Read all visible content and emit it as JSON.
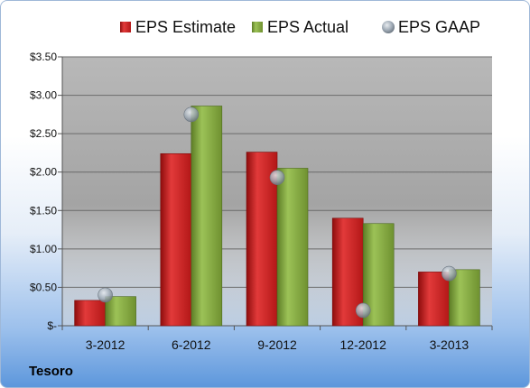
{
  "company": "Tesoro",
  "colors": {
    "estimate": "#cc1f1f",
    "actual": "#7ea83a",
    "gaap": "#9aa6b2",
    "plot_bg": "#a9a9a9",
    "grid": "#6b6b6b"
  },
  "chart_data": {
    "type": "bar",
    "categories": [
      "3-2012",
      "6-2012",
      "9-2012",
      "12-2012",
      "3-2013"
    ],
    "series": [
      {
        "name": "EPS Estimate",
        "values": [
          0.33,
          2.24,
          2.26,
          1.4,
          0.7
        ]
      },
      {
        "name": "EPS Actual",
        "values": [
          0.38,
          2.86,
          2.05,
          1.33,
          0.73
        ]
      },
      {
        "name": "EPS GAAP",
        "marker": "circle",
        "values": [
          0.4,
          2.75,
          1.93,
          0.2,
          0.68
        ]
      }
    ],
    "ylim": [
      0,
      3.5
    ],
    "yticks": [
      0,
      0.5,
      1.0,
      1.5,
      2.0,
      2.5,
      3.0,
      3.5
    ],
    "ytick_labels": [
      "$-",
      "$0.50",
      "$1.00",
      "$1.50",
      "$2.00",
      "$2.50",
      "$3.00",
      "$3.50"
    ],
    "grid": true,
    "legend": "top"
  }
}
